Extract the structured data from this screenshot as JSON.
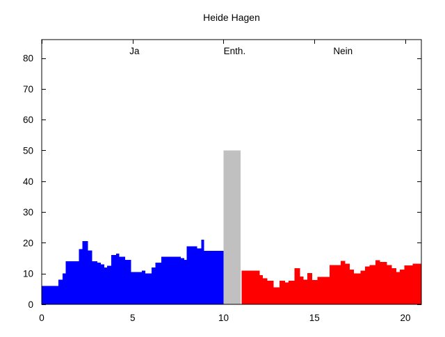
{
  "chart_data": {
    "type": "bar",
    "title": "Heide Hagen",
    "xlabel": "",
    "ylabel": "",
    "xlim": [
      0,
      20.88
    ],
    "ylim": [
      0,
      86
    ],
    "xticks": [
      0,
      5,
      10,
      15,
      20
    ],
    "yticks": [
      0,
      10,
      20,
      30,
      40,
      50,
      60,
      70,
      80
    ],
    "grid": false,
    "legend_position": "none",
    "background": "#ffffff",
    "axis_color": "#000000",
    "annotations": [
      {
        "text": "Ja",
        "x": 5.1,
        "y": 81.3
      },
      {
        "text": "Enth.",
        "x": 10.61,
        "y": 81.3
      },
      {
        "text": "Nein",
        "x": 16.57,
        "y": 81.3
      }
    ],
    "series": [
      {
        "name": "Ja",
        "color": "#0000ff",
        "segments": [
          [
            0.0,
            0.92,
            6
          ],
          [
            0.92,
            1.15,
            8
          ],
          [
            1.15,
            1.31,
            10
          ],
          [
            1.31,
            2.04,
            14
          ],
          [
            2.04,
            2.23,
            18
          ],
          [
            2.23,
            2.55,
            20.5
          ],
          [
            2.55,
            2.78,
            17.5
          ],
          [
            2.78,
            3.06,
            14
          ],
          [
            3.06,
            3.25,
            13.5
          ],
          [
            3.25,
            3.44,
            13
          ],
          [
            3.44,
            3.59,
            12
          ],
          [
            3.59,
            3.82,
            12.5
          ],
          [
            3.82,
            4.1,
            16
          ],
          [
            4.1,
            4.27,
            16.5
          ],
          [
            4.27,
            4.59,
            15.5
          ],
          [
            4.59,
            4.91,
            14.5
          ],
          [
            4.91,
            5.5,
            10.5
          ],
          [
            5.5,
            5.7,
            11
          ],
          [
            5.7,
            6.05,
            10
          ],
          [
            6.05,
            6.25,
            12
          ],
          [
            6.25,
            6.57,
            13.5
          ],
          [
            6.57,
            7.65,
            15.5
          ],
          [
            7.65,
            7.84,
            15
          ],
          [
            7.84,
            7.97,
            14.5
          ],
          [
            7.97,
            8.55,
            18.8
          ],
          [
            8.55,
            8.78,
            18.2
          ],
          [
            8.78,
            8.92,
            21
          ],
          [
            8.92,
            10.0,
            17.4
          ]
        ]
      },
      {
        "name": "Enth.",
        "color": "#c0c0c0",
        "segments": [
          [
            10.0,
            10.93,
            50
          ]
        ]
      },
      {
        "name": "Nein",
        "color": "#ff0000",
        "segments": [
          [
            11.0,
            11.98,
            11
          ],
          [
            11.98,
            12.17,
            9.5
          ],
          [
            12.17,
            12.4,
            8.5
          ],
          [
            12.4,
            12.75,
            7.7
          ],
          [
            12.75,
            13.07,
            5.5
          ],
          [
            13.07,
            13.38,
            7.7
          ],
          [
            13.38,
            13.58,
            7.1
          ],
          [
            13.58,
            13.9,
            7.7
          ],
          [
            13.9,
            14.2,
            11.7
          ],
          [
            14.2,
            14.4,
            9
          ],
          [
            14.4,
            14.6,
            8
          ],
          [
            14.6,
            14.88,
            10.2
          ],
          [
            14.88,
            15.17,
            7.9
          ],
          [
            15.17,
            15.83,
            8.9
          ],
          [
            15.83,
            16.44,
            12.8
          ],
          [
            16.44,
            16.7,
            14.1
          ],
          [
            16.7,
            16.95,
            13.2
          ],
          [
            16.95,
            17.18,
            11.3
          ],
          [
            17.18,
            17.53,
            10.0
          ],
          [
            17.53,
            17.78,
            10.9
          ],
          [
            17.78,
            18.04,
            12.3
          ],
          [
            18.04,
            18.36,
            12.8
          ],
          [
            18.36,
            18.61,
            14.3
          ],
          [
            18.61,
            18.99,
            13.8
          ],
          [
            18.99,
            19.25,
            12.8
          ],
          [
            19.25,
            19.5,
            11.7
          ],
          [
            19.5,
            19.69,
            10.5
          ],
          [
            19.69,
            19.95,
            11.3
          ],
          [
            19.95,
            20.4,
            12.6
          ],
          [
            20.4,
            20.88,
            13.2
          ]
        ]
      }
    ]
  }
}
